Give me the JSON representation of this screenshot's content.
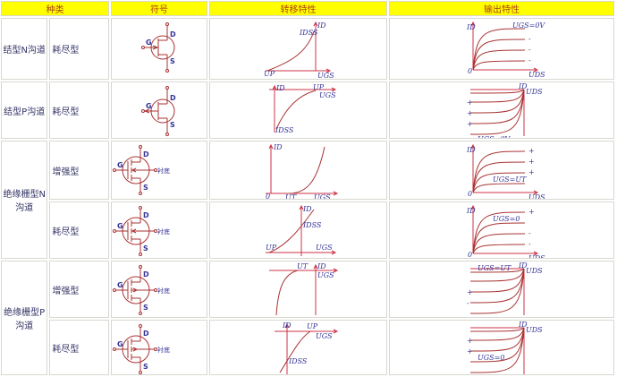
{
  "colors": {
    "header_bg": "#ffff00",
    "header_text": "#b04010",
    "curve": "#aa3333",
    "text": "#333399"
  },
  "header": [
    "种类",
    "符号",
    "转移特性",
    "输出特性"
  ],
  "groups": [
    "结型N沟道",
    "结型P沟道",
    "绝缘栅型N沟道",
    "绝缘栅型P沟道"
  ],
  "rows": [
    {
      "mode": "耗尽型",
      "symbol": {
        "type": "jfet-n",
        "G": "G",
        "D": "D",
        "S": "S"
      },
      "transfer": {
        "type": "jfet-n",
        "labels": {
          "id": "ID",
          "idss": "IDSS",
          "up": "UP",
          "ugs": "UGS"
        }
      },
      "output": {
        "type": "n",
        "id": "ID",
        "uds": "UDS",
        "origin": "0",
        "curve_labels": [
          "UGS=0V",
          "-",
          "-",
          "-"
        ]
      }
    },
    {
      "mode": "耗尽型",
      "symbol": {
        "type": "jfet-p",
        "G": "G",
        "D": "D",
        "S": "S"
      },
      "transfer": {
        "type": "jfet-p",
        "labels": {
          "id": "ID",
          "idss": "IDSS",
          "up": "UP",
          "ugs": "UGS"
        }
      },
      "output": {
        "type": "p",
        "id": "ID",
        "uds": "UDS",
        "curve_labels": [
          "",
          "+",
          "+",
          "+",
          "UGS=0V"
        ]
      }
    },
    {
      "mode": "增强型",
      "symbol": {
        "type": "mos-n",
        "G": "G",
        "D": "D",
        "S": "S",
        "sub": "衬底"
      },
      "transfer": {
        "type": "mos-n-enh",
        "labels": {
          "id": "ID",
          "origin": "0",
          "ut": "UT",
          "ugs": "UGS"
        }
      },
      "output": {
        "type": "n",
        "id": "ID",
        "uds": "UDS",
        "origin": "0",
        "curve_labels": [
          "+",
          "+",
          "+",
          "UGS=UT"
        ]
      }
    },
    {
      "mode": "耗尽型",
      "symbol": {
        "type": "mos-n",
        "G": "G",
        "D": "D",
        "S": "S",
        "sub": "衬底"
      },
      "transfer": {
        "type": "mos-n-dep",
        "labels": {
          "id": "ID",
          "idss": "IDSS",
          "up": "UP",
          "ugs": "UGS"
        }
      },
      "output": {
        "type": "n",
        "id": "ID",
        "uds": "UDS",
        "origin": "0",
        "curve_labels": [
          "+",
          "UGS=0",
          "-",
          "-"
        ]
      }
    },
    {
      "mode": "增强型",
      "symbol": {
        "type": "mos-p",
        "G": "G",
        "D": "D",
        "S": "S",
        "sub": "衬底"
      },
      "transfer": {
        "type": "mos-p-enh",
        "labels": {
          "id": "ID",
          "ut": "UT",
          "ugs": "UGS"
        }
      },
      "output": {
        "type": "p",
        "id": "ID",
        "uds": "UDS",
        "curve_labels": [
          "UGS=UT",
          "",
          "+",
          "-"
        ]
      }
    },
    {
      "mode": "耗尽型",
      "symbol": {
        "type": "mos-p",
        "G": "G",
        "D": "D",
        "S": "S",
        "sub": "衬底"
      },
      "transfer": {
        "type": "mos-p-dep",
        "labels": {
          "id": "ID",
          "idss": "IDSS",
          "up": "UP",
          "ugs": "UGS"
        }
      },
      "output": {
        "type": "p",
        "id": "ID",
        "uds": "UDS",
        "curve_labels": [
          "",
          "+",
          "+",
          "UGS=0",
          ""
        ]
      }
    }
  ]
}
